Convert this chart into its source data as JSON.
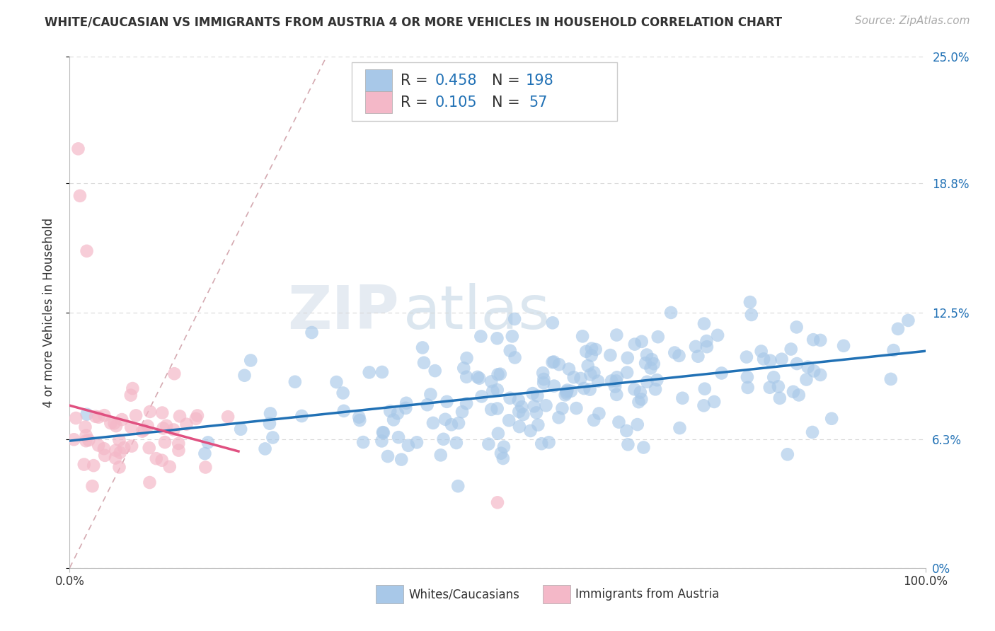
{
  "title": "WHITE/CAUCASIAN VS IMMIGRANTS FROM AUSTRIA 4 OR MORE VEHICLES IN HOUSEHOLD CORRELATION CHART",
  "source": "Source: ZipAtlas.com",
  "ylabel": "4 or more Vehicles in Household",
  "xlim": [
    0,
    100
  ],
  "ylim": [
    0,
    25
  ],
  "ytick_values": [
    0,
    6.3,
    12.5,
    18.8,
    25.0
  ],
  "ytick_labels_right": [
    "0%",
    "6.3%",
    "12.5%",
    "18.8%",
    "25.0%"
  ],
  "xtick_values": [
    0,
    100
  ],
  "xtick_labels": [
    "0.0%",
    "100.0%"
  ],
  "blue_fill_color": "#a8c8e8",
  "blue_line_color": "#2171b5",
  "pink_fill_color": "#f4b8c8",
  "pink_line_color": "#e05080",
  "diag_color": "#d0a0a8",
  "grid_color": "#d8d8d8",
  "watermark_zip_color": "#c8d8e8",
  "watermark_atlas_color": "#a0b8d0",
  "R_blue": 0.458,
  "N_blue": 198,
  "R_pink": 0.105,
  "N_pink": 57,
  "legend_text_color": "#2171b5",
  "legend_rv_color": "#333333",
  "title_fontsize": 12,
  "source_fontsize": 11,
  "axis_label_fontsize": 12,
  "tick_fontsize": 12,
  "legend_fontsize": 15
}
